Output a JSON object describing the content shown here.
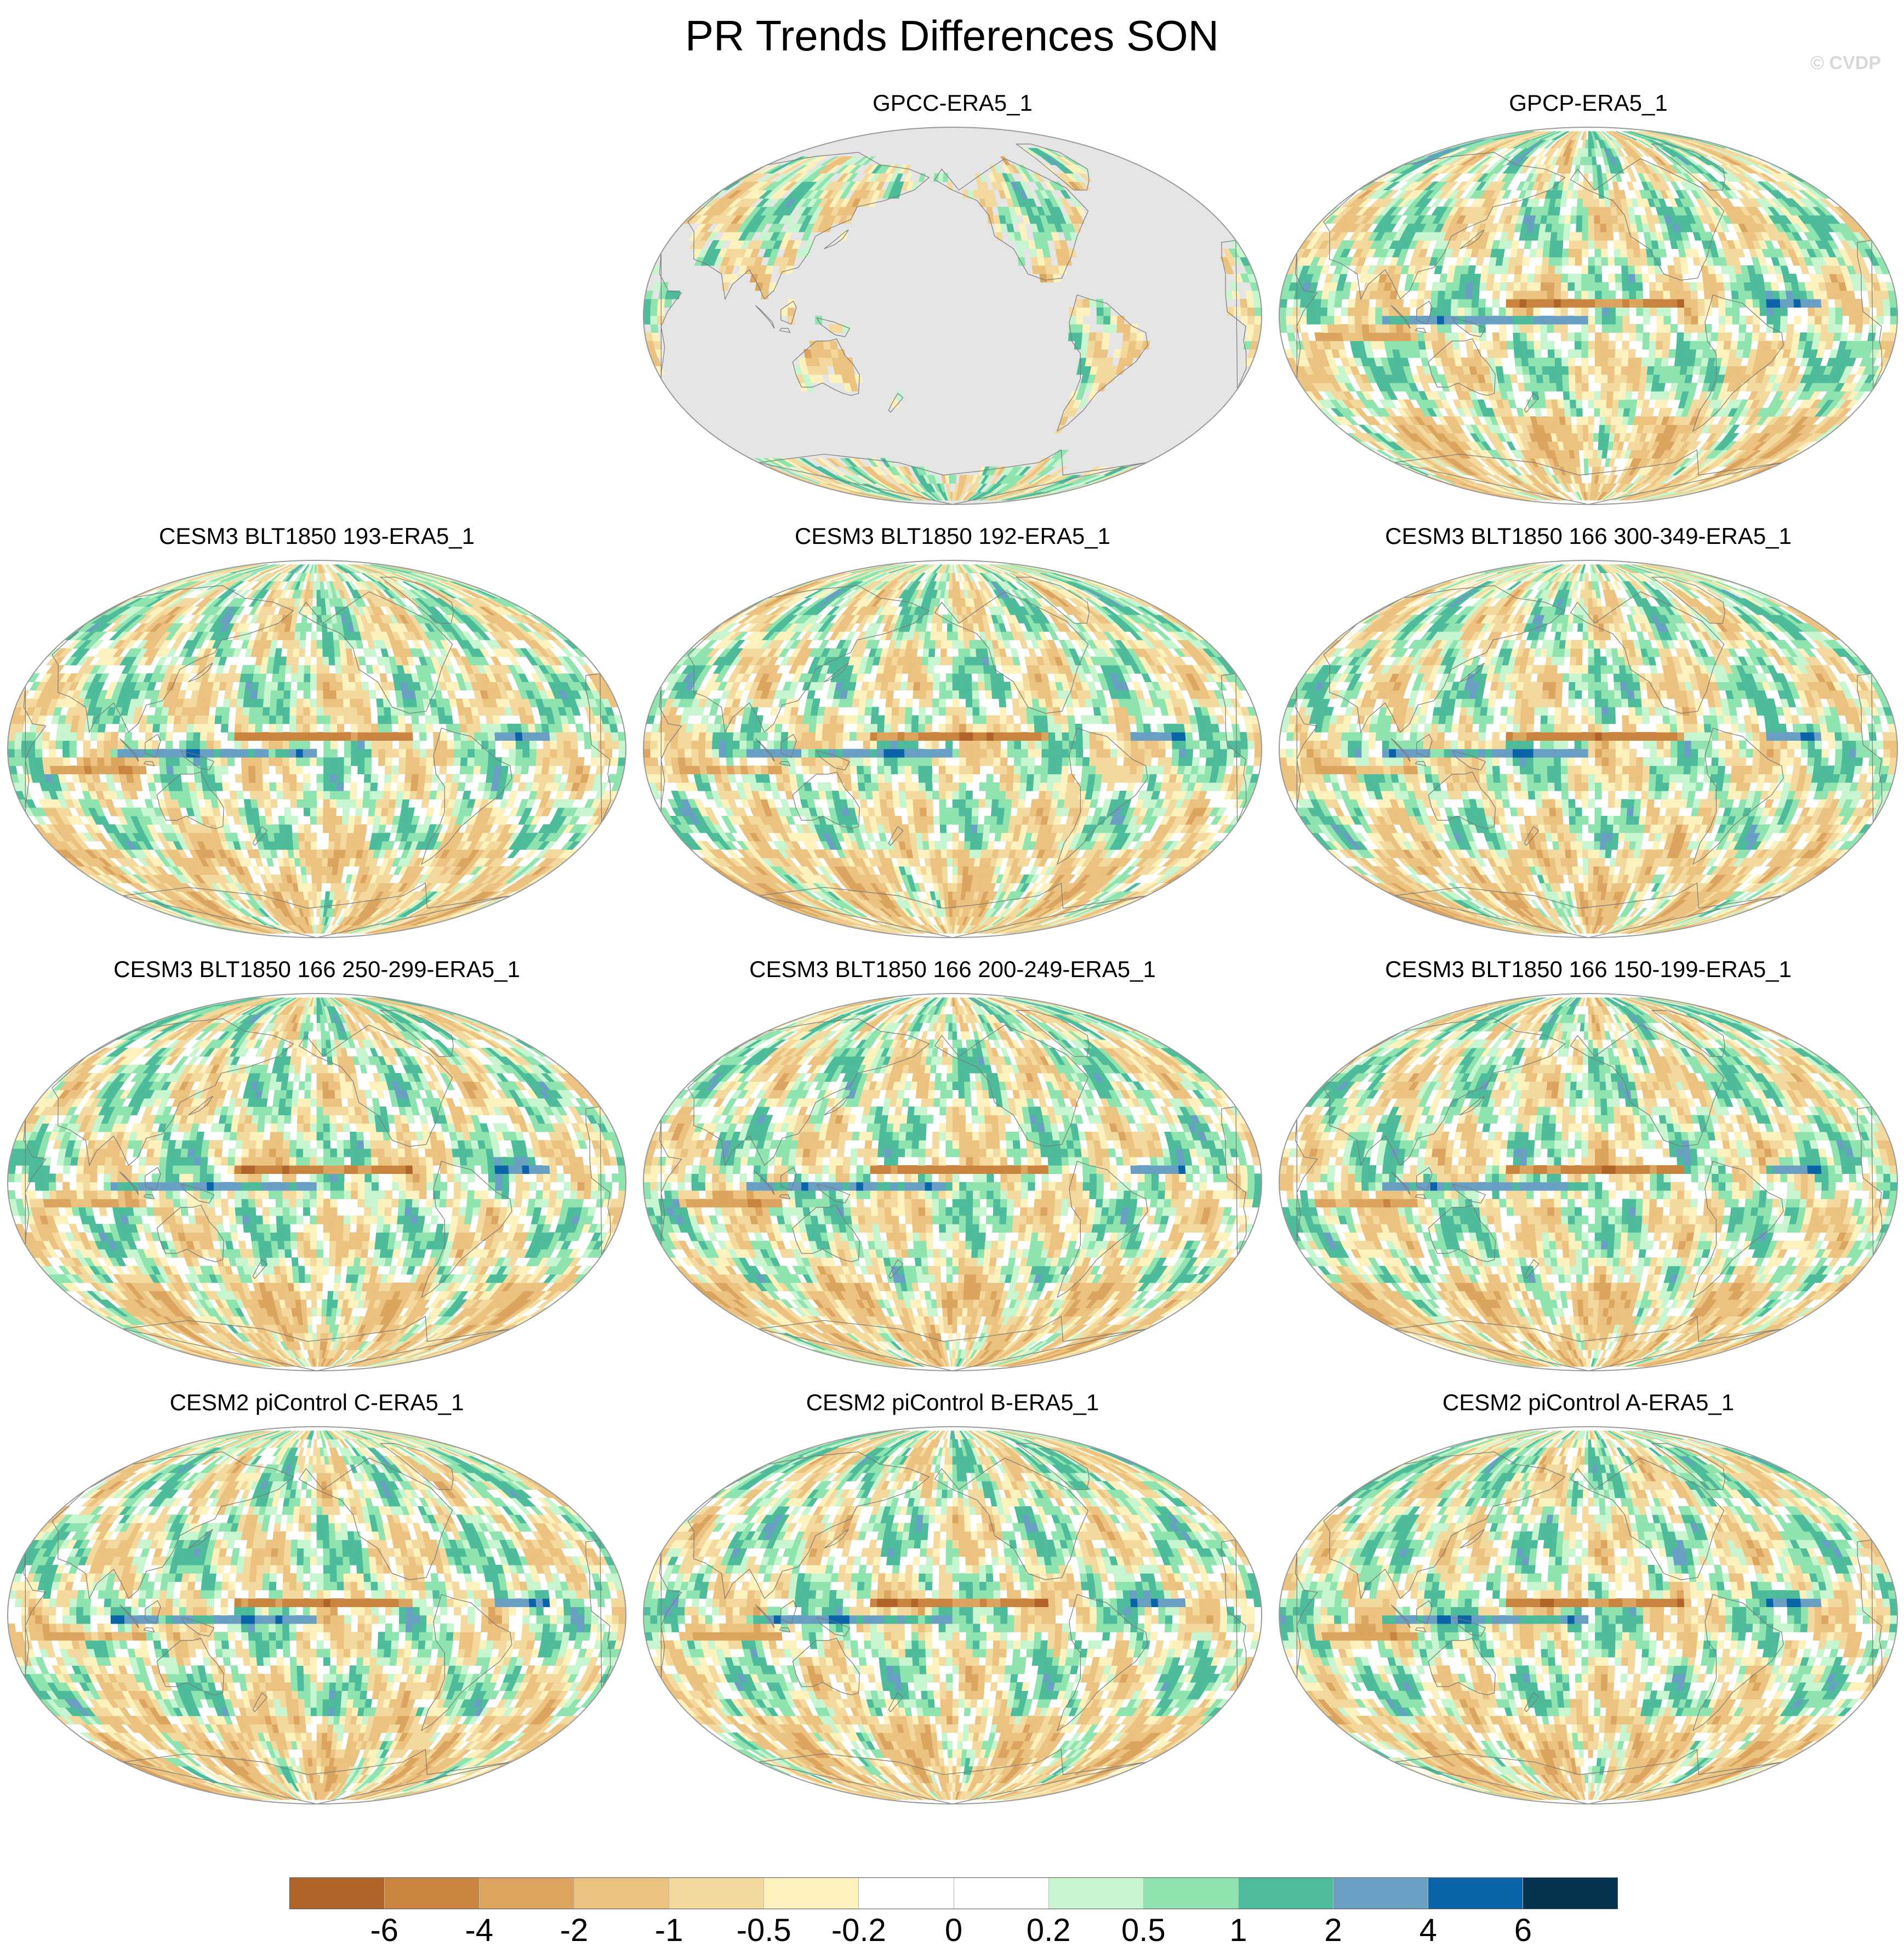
{
  "title": "PR Trends Differences SON",
  "credit": "© CVDP",
  "colors": {
    "land_mask": "#e5e5e5",
    "coastline": "#7a7a7a",
    "outline": "#9a9a9a"
  },
  "colorbar": {
    "colors": [
      "#b1642a",
      "#c98540",
      "#dba45f",
      "#ebc27f",
      "#f4d99e",
      "#fdf1bd",
      "#ffffff",
      "#ffffff",
      "#c7f5cf",
      "#8fe3af",
      "#4ebb9a",
      "#6a9fc4",
      "#0b63a8",
      "#05324f"
    ],
    "labels": [
      "-6",
      "-4",
      "-2",
      "-1",
      "-0.5",
      "-0.2",
      "0",
      "0.2",
      "0.5",
      "1",
      "2",
      "4",
      "6"
    ]
  },
  "panels": [
    {
      "title": "GPCC-ERA5_1",
      "seed": 11,
      "land_only": true
    },
    {
      "title": "GPCP-ERA5_1",
      "seed": 23,
      "land_only": false
    },
    {
      "title": "CESM3 BLT1850 193-ERA5_1",
      "seed": 37,
      "land_only": false
    },
    {
      "title": "CESM3 BLT1850 192-ERA5_1",
      "seed": 41,
      "land_only": false
    },
    {
      "title": "CESM3 BLT1850 166 300-349-ERA5_1",
      "seed": 53,
      "land_only": false
    },
    {
      "title": "CESM3 BLT1850 166 250-299-ERA5_1",
      "seed": 67,
      "land_only": false
    },
    {
      "title": "CESM3 BLT1850 166 200-249-ERA5_1",
      "seed": 71,
      "land_only": false
    },
    {
      "title": "CESM3 BLT1850 166 150-199-ERA5_1",
      "seed": 83,
      "land_only": false
    },
    {
      "title": "CESM2 piControl C-ERA5_1",
      "seed": 97,
      "land_only": false
    },
    {
      "title": "CESM2 piControl B-ERA5_1",
      "seed": 101,
      "land_only": false
    },
    {
      "title": "CESM2 piControl A-ERA5_1",
      "seed": 113,
      "land_only": false
    }
  ]
}
